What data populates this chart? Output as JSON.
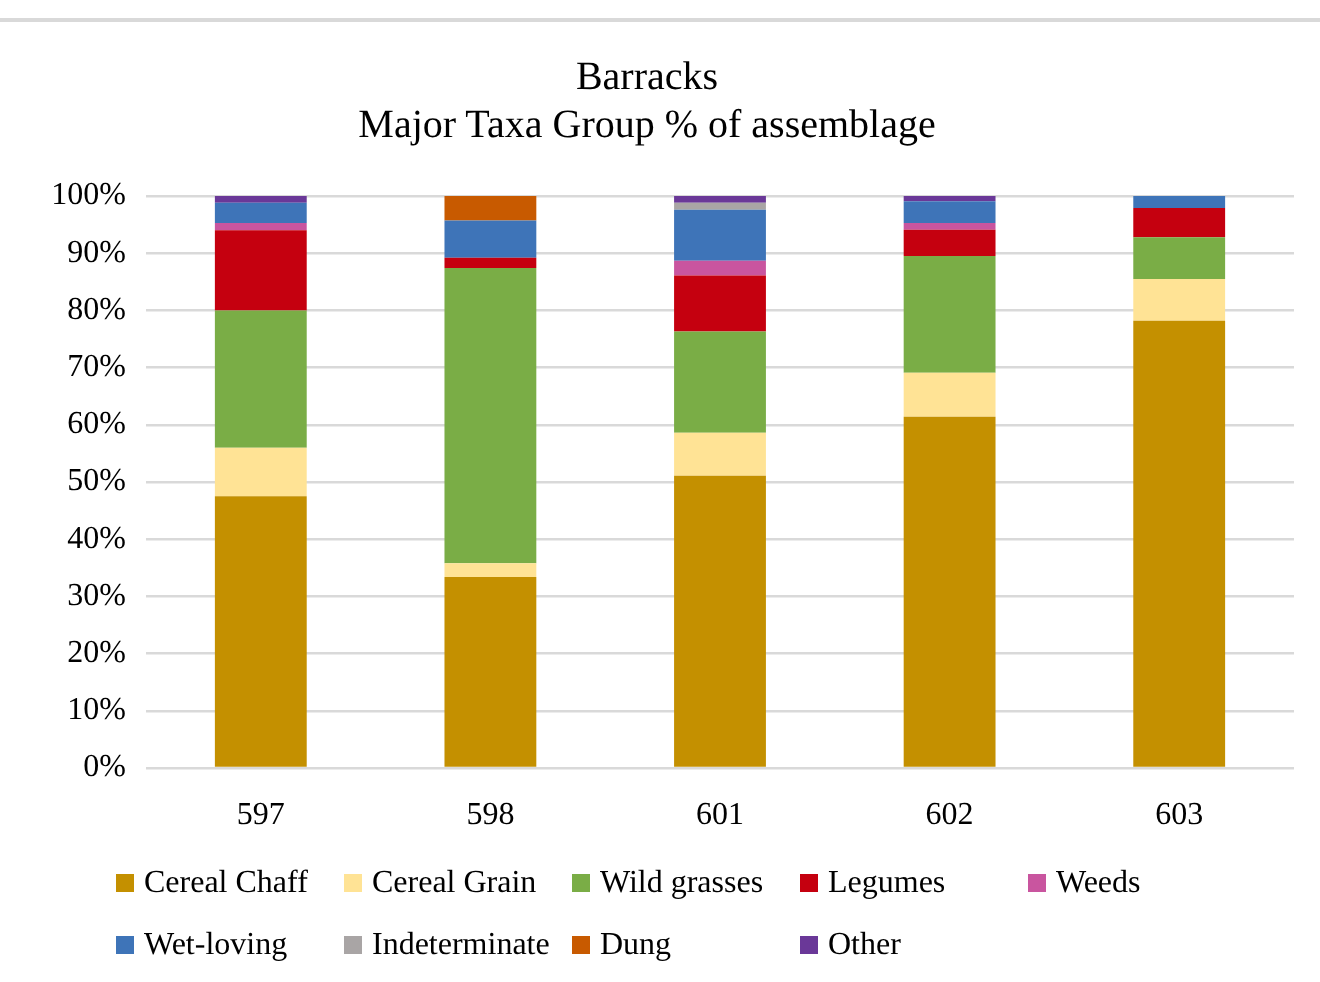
{
  "chart_data": {
    "type": "bar",
    "title": "Barracks",
    "subtitle": "Major Taxa Group % of assemblage",
    "categories": [
      "597",
      "598",
      "601",
      "602",
      "603"
    ],
    "stacked": true,
    "series": [
      {
        "name": "Cereal Chaff",
        "color": "#c49000",
        "values": [
          47.5,
          33.4,
          51.1,
          61.4,
          78.2
        ]
      },
      {
        "name": "Cereal Grain",
        "color": "#ffe395",
        "values": [
          8.5,
          2.4,
          7.5,
          7.7,
          7.3
        ]
      },
      {
        "name": "Wild grasses",
        "color": "#7aad46",
        "values": [
          24,
          51.6,
          17.7,
          20.4,
          7.3
        ]
      },
      {
        "name": "Legumes",
        "color": "#c5000f",
        "values": [
          14,
          1.8,
          9.8,
          4.6,
          5.1
        ]
      },
      {
        "name": "Weeds",
        "color": "#c9559f",
        "values": [
          1.3,
          0,
          2.6,
          1.2,
          0
        ]
      },
      {
        "name": "Wet-loving",
        "color": "#3e74b8",
        "values": [
          3.5,
          6.5,
          8.9,
          3.8,
          2.1
        ]
      },
      {
        "name": "Indeterminate",
        "color": "#a9a5a5",
        "values": [
          0,
          0,
          1.2,
          0,
          0
        ]
      },
      {
        "name": "Dung",
        "color": "#c85a00",
        "values": [
          0,
          4.3,
          0,
          0,
          0
        ]
      },
      {
        "name": "Other",
        "color": "#6a3898",
        "values": [
          1.2,
          0,
          1.2,
          0.9,
          0
        ]
      }
    ],
    "ylim": [
      0,
      100
    ],
    "yticks": [
      {
        "value": 0,
        "label": "0%"
      },
      {
        "value": 10,
        "label": "10%"
      },
      {
        "value": 20,
        "label": "20%"
      },
      {
        "value": 30,
        "label": "30%"
      },
      {
        "value": 40,
        "label": "40%"
      },
      {
        "value": 50,
        "label": "50%"
      },
      {
        "value": 60,
        "label": "60%"
      },
      {
        "value": 70,
        "label": "70%"
      },
      {
        "value": 80,
        "label": "80%"
      },
      {
        "value": 90,
        "label": "90%"
      },
      {
        "value": 100,
        "label": "100%"
      }
    ],
    "grid": "y",
    "legend": "bottom"
  }
}
